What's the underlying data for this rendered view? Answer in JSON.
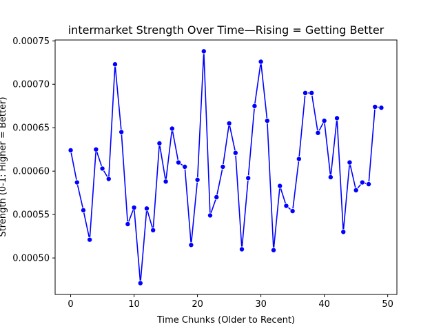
{
  "chart_data": {
    "type": "line",
    "title": "intermarket Strength Over Time—Rising = Getting Better",
    "xlabel": "Time Chunks (Older to Recent)",
    "ylabel": "Strength (0-1: Higher = Better)",
    "xlim": [
      -2.45,
      51.45
    ],
    "ylim": [
      0.000458,
      0.000751
    ],
    "xticks": [
      0,
      10,
      20,
      30,
      40,
      50
    ],
    "xtick_labels": [
      "0",
      "10",
      "20",
      "30",
      "40",
      "50"
    ],
    "yticks": [
      0.0005,
      0.00055,
      0.0006,
      0.00065,
      0.0007,
      0.00075
    ],
    "ytick_labels": [
      "0.00050",
      "0.00055",
      "0.00060",
      "0.00065",
      "0.00070",
      "0.00075"
    ],
    "grid": false,
    "series": [
      {
        "color": "#0000ff",
        "marker": "circle",
        "x": [
          0,
          1,
          2,
          3,
          4,
          5,
          6,
          7,
          8,
          9,
          10,
          11,
          12,
          13,
          14,
          15,
          16,
          17,
          18,
          19,
          20,
          21,
          22,
          23,
          24,
          25,
          26,
          27,
          28,
          29,
          30,
          31,
          32,
          33,
          34,
          35,
          36,
          37,
          38,
          39,
          40,
          41,
          42,
          43,
          44,
          45,
          46,
          47,
          48,
          49
        ],
        "values": [
          0.000624,
          0.000587,
          0.000555,
          0.000521,
          0.000625,
          0.000603,
          0.000591,
          0.000723,
          0.000645,
          0.000539,
          0.000558,
          0.000471,
          0.000557,
          0.000532,
          0.000632,
          0.000588,
          0.000649,
          0.00061,
          0.000605,
          0.000515,
          0.00059,
          0.000738,
          0.000549,
          0.00057,
          0.000605,
          0.000655,
          0.000621,
          0.00051,
          0.000592,
          0.000675,
          0.000726,
          0.000658,
          0.000509,
          0.000583,
          0.00056,
          0.000554,
          0.000614,
          0.00069,
          0.00069,
          0.000644,
          0.000658,
          0.000593,
          0.000661,
          0.00053,
          0.00061,
          0.000578,
          0.000587,
          0.000585,
          0.000674,
          0.000673
        ]
      }
    ]
  }
}
